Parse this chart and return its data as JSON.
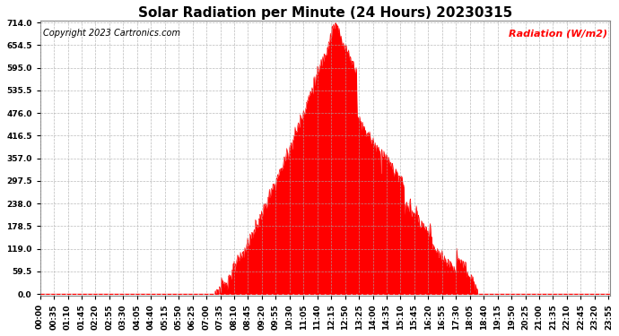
{
  "title": "Solar Radiation per Minute (24 Hours) 20230315",
  "copyright_text": "Copyright 2023 Cartronics.com",
  "ylabel": "Radiation (W/m2)",
  "ylabel_color": "#ff0000",
  "fill_color": "#ff0000",
  "line_color": "#ff0000",
  "background_color": "#ffffff",
  "grid_color": "#aaaaaa",
  "yticks": [
    0.0,
    59.5,
    119.0,
    178.5,
    238.0,
    297.5,
    357.0,
    416.5,
    476.0,
    535.5,
    595.0,
    654.5,
    714.0
  ],
  "ymax": 714.0,
  "ymin": 0.0,
  "hline_y": 0.0,
  "hline_color": "#ff0000",
  "total_minutes": 1440,
  "tick_interval": 35,
  "title_fontsize": 11,
  "tick_fontsize": 6.5,
  "label_fontsize": 8,
  "copyright_fontsize": 7
}
